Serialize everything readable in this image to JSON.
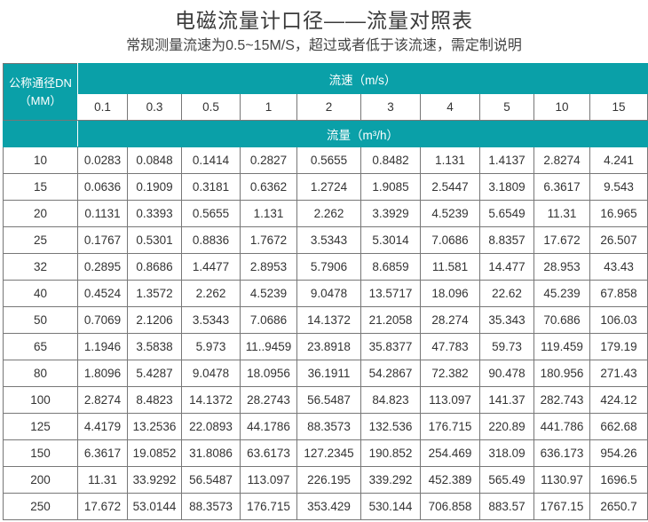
{
  "title": "电磁流量计口径——流量对照表",
  "subtitle": "常规测量流速为0.5~15M/S，超过或者低于该流速，需定制说明",
  "table": {
    "dn_header": "公称通径DN",
    "dn_unit": "（MM）",
    "speed_header": "流速（m/s）",
    "flow_header": "流量（m³/h）",
    "speeds": [
      "0.1",
      "0.3",
      "0.5",
      "1",
      "2",
      "3",
      "4",
      "5",
      "10",
      "15"
    ],
    "rows": [
      {
        "dn": "10",
        "values": [
          "0.0283",
          "0.0848",
          "0.1414",
          "0.2827",
          "0.5655",
          "0.8482",
          "1.131",
          "1.4137",
          "2.8274",
          "4.241"
        ]
      },
      {
        "dn": "15",
        "values": [
          "0.0636",
          "0.1909",
          "0.3181",
          "0.6362",
          "1.2724",
          "1.9085",
          "2.5447",
          "3.1809",
          "6.3617",
          "9.543"
        ]
      },
      {
        "dn": "20",
        "values": [
          "0.1131",
          "0.3393",
          "0.5655",
          "1.131",
          "2.262",
          "3.3929",
          "4.5239",
          "5.6549",
          "11.31",
          "16.965"
        ]
      },
      {
        "dn": "25",
        "values": [
          "0.1767",
          "0.5301",
          "0.8836",
          "1.7672",
          "3.5343",
          "5.3014",
          "7.0686",
          "8.8357",
          "17.672",
          "26.507"
        ]
      },
      {
        "dn": "32",
        "values": [
          "0.2895",
          "0.8686",
          "1.4477",
          "2.8953",
          "5.7906",
          "8.6859",
          "11.581",
          "14.477",
          "28.953",
          "43.43"
        ]
      },
      {
        "dn": "40",
        "values": [
          "0.4524",
          "1.3572",
          "2.262",
          "4.5239",
          "9.0478",
          "13.5717",
          "18.096",
          "22.62",
          "45.239",
          "67.858"
        ]
      },
      {
        "dn": "50",
        "values": [
          "0.7069",
          "2.1206",
          "3.5343",
          "7.0686",
          "14.1372",
          "21.2058",
          "28.274",
          "35.343",
          "70.686",
          "106.03"
        ]
      },
      {
        "dn": "65",
        "values": [
          "1.1946",
          "3.5838",
          "5.973",
          "11..9459",
          "23.8918",
          "35.8377",
          "47.783",
          "59.73",
          "119.459",
          "179.19"
        ]
      },
      {
        "dn": "80",
        "values": [
          "1.8096",
          "5.4287",
          "9.0478",
          "18.0956",
          "36.1911",
          "54.2867",
          "72.382",
          "90.478",
          "180.956",
          "271.43"
        ]
      },
      {
        "dn": "100",
        "values": [
          "2.8274",
          "8.4823",
          "14.1372",
          "28.2743",
          "56.5487",
          "84.823",
          "113.097",
          "141.37",
          "282.743",
          "424.12"
        ]
      },
      {
        "dn": "125",
        "values": [
          "4.4179",
          "13.2536",
          "22.0893",
          "44.1786",
          "88.3573",
          "132.536",
          "176.715",
          "220.89",
          "441.786",
          "662.68"
        ]
      },
      {
        "dn": "150",
        "values": [
          "6.3617",
          "19.0852",
          "31.8086",
          "63.6173",
          "127.2345",
          "190.852",
          "254.469",
          "318.09",
          "636.173",
          "954.26"
        ]
      },
      {
        "dn": "200",
        "values": [
          "11.31",
          "33.9292",
          "56.5487",
          "113.097",
          "226.195",
          "339.292",
          "452.389",
          "565.49",
          "1130.97",
          "1696.5"
        ]
      },
      {
        "dn": "250",
        "values": [
          "17.672",
          "53.0144",
          "88.3573",
          "176.715",
          "353.429",
          "530.144",
          "706.858",
          "883.57",
          "1767.15",
          "2650.7"
        ]
      }
    ]
  },
  "colors": {
    "header_teal": "#0aa0a8"
  }
}
